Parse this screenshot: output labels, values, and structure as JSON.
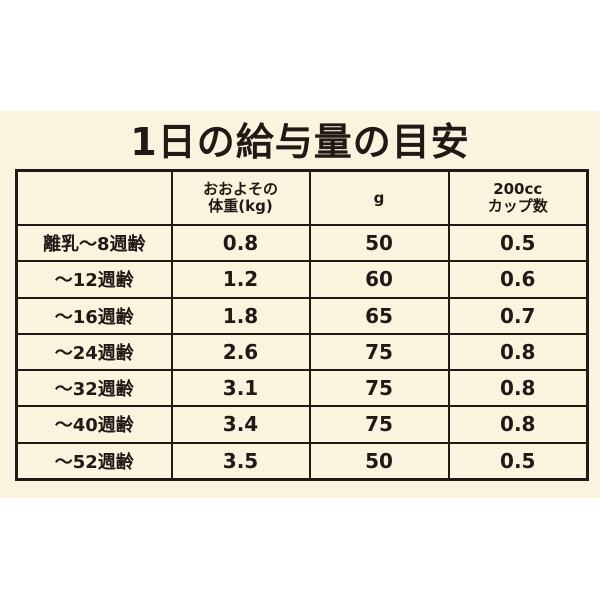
{
  "title": "1日の給与量の目安",
  "headers": [
    "",
    "おおよその\n体重(kg)",
    "g",
    "200cc\nカップ数"
  ],
  "header_lines": {
    "weight": [
      "おおよその",
      "体重(kg)"
    ],
    "grams": "g",
    "cups": [
      "200cc",
      "カップ数"
    ]
  },
  "rows": [
    {
      "age": "離乳〜8週齢",
      "weight": "0.8",
      "grams": "50",
      "cups": "0.5"
    },
    {
      "age": "〜12週齢",
      "weight": "1.2",
      "grams": "60",
      "cups": "0.6"
    },
    {
      "age": "〜16週齢",
      "weight": "1.8",
      "grams": "65",
      "cups": "0.7"
    },
    {
      "age": "〜24週齢",
      "weight": "2.6",
      "grams": "75",
      "cups": "0.8"
    },
    {
      "age": "〜32週齢",
      "weight": "3.1",
      "grams": "75",
      "cups": "0.8"
    },
    {
      "age": "〜40週齢",
      "weight": "3.4",
      "grams": "75",
      "cups": "0.8"
    },
    {
      "age": "〜52週齢",
      "weight": "3.5",
      "grams": "50",
      "cups": "0.5"
    }
  ],
  "colors": {
    "background": "#faf4de",
    "ink": "#231815"
  }
}
